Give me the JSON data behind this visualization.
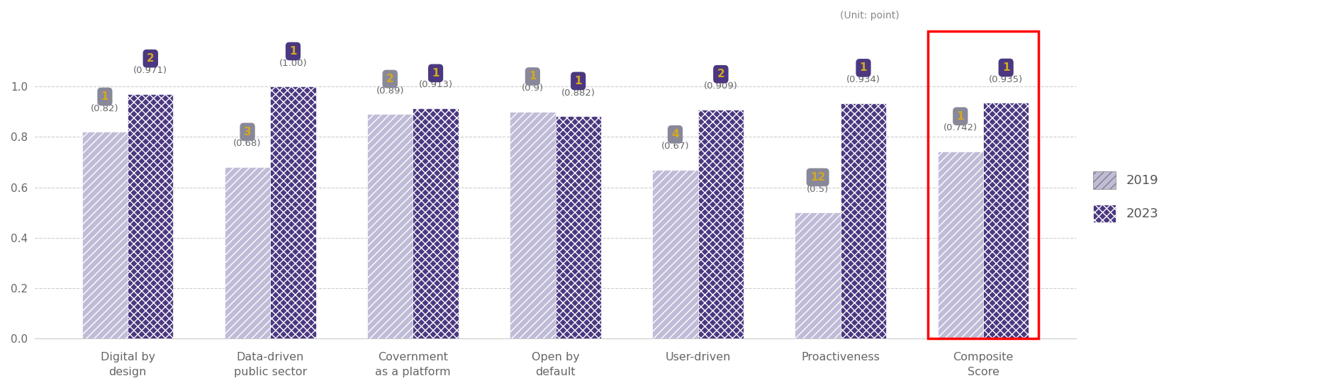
{
  "categories": [
    "Digital by\ndesign",
    "Data-driven\npublic sector",
    "Covernment\nas a platform",
    "Open by\ndefault",
    "User-driven",
    "Proactiveness",
    "Composite\nScore"
  ],
  "values_2019": [
    0.82,
    0.68,
    0.89,
    0.9,
    0.67,
    0.5,
    0.742
  ],
  "values_2023": [
    0.971,
    1.0,
    0.913,
    0.882,
    0.909,
    0.934,
    0.935
  ],
  "ranks_2019": [
    "1",
    "3",
    "2",
    "1",
    "4",
    "12",
    "1"
  ],
  "ranks_2023": [
    "2",
    "1",
    "1",
    "1",
    "2",
    "1",
    "1"
  ],
  "labels_2019": [
    "(0.82)",
    "(0.68)",
    "(0.89)",
    "(0.9)",
    "(0.67)",
    "(0.5)",
    "(0.742)"
  ],
  "labels_2023": [
    "(0.971)",
    "(1.00)",
    "(0.913)",
    "(0.882)",
    "(0.909)",
    "(0.934)",
    "(0.935)"
  ],
  "color_2019": "#c0bcd8",
  "color_2023": "#4b3880",
  "hatch_2019": "///",
  "hatch_2023": "xxx",
  "bar_width": 0.32,
  "ylim": [
    0,
    1.25
  ],
  "yticks": [
    0.0,
    0.2,
    0.4,
    0.6,
    0.8,
    1.0
  ],
  "unit_label": "(Unit: point)",
  "legend_2019": "2019",
  "legend_2023": "2023",
  "highlight_color": "red",
  "highlight_linewidth": 2.5,
  "bubble_color_2019": "#888899",
  "bubble_color_2023": "#4b3880",
  "bubble_text_color": "#d4a820",
  "score_text_color": "#666666",
  "background_color": "#ffffff"
}
